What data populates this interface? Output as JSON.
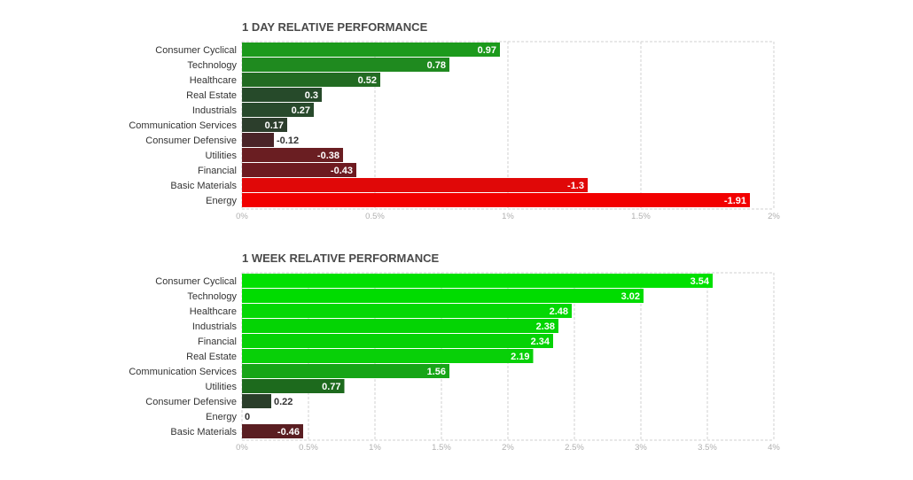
{
  "chart_data": [
    {
      "type": "bar",
      "orientation": "horizontal",
      "title": "1 DAY RELATIVE PERFORMANCE",
      "categories": [
        "Consumer Cyclical",
        "Technology",
        "Healthcare",
        "Real Estate",
        "Industrials",
        "Communication Services",
        "Consumer Defensive",
        "Utilities",
        "Financial",
        "Basic Materials",
        "Energy"
      ],
      "values": [
        0.97,
        0.78,
        0.52,
        0.3,
        0.27,
        0.17,
        -0.12,
        -0.38,
        -0.43,
        -1.3,
        -1.91
      ],
      "value_labels": [
        "0.97",
        "0.78",
        "0.52",
        "0.3",
        "0.27",
        "0.17",
        "-0.12",
        "-0.38",
        "-0.43",
        "-1.3",
        "-1.91"
      ],
      "bar_colors": [
        "#1c9a1c",
        "#1f8a1f",
        "#226b22",
        "#264a2a",
        "#284a2c",
        "#2c3e2c",
        "#4a2428",
        "#6a1e22",
        "#6e1a20",
        "#e00808",
        "#f20000"
      ],
      "xlim": [
        0,
        2
      ],
      "xticks": [
        "0%",
        "0.5%",
        "1%",
        "1.5%",
        "2%"
      ],
      "grid": true,
      "scale": "absolute value"
    },
    {
      "type": "bar",
      "orientation": "horizontal",
      "title": "1 WEEK RELATIVE PERFORMANCE",
      "categories": [
        "Consumer Cyclical",
        "Technology",
        "Healthcare",
        "Industrials",
        "Financial",
        "Real Estate",
        "Communication Services",
        "Utilities",
        "Consumer Defensive",
        "Energy",
        "Basic Materials"
      ],
      "values": [
        3.54,
        3.02,
        2.48,
        2.38,
        2.34,
        2.19,
        1.56,
        0.77,
        0.22,
        0,
        -0.46
      ],
      "value_labels": [
        "3.54",
        "3.02",
        "2.48",
        "2.38",
        "2.34",
        "2.19",
        "1.56",
        "0.77",
        "0.22",
        "0",
        "-0.46"
      ],
      "bar_colors": [
        "#00e000",
        "#00dc00",
        "#04d804",
        "#04d404",
        "#06d206",
        "#08d008",
        "#17a517",
        "#1d6a1d",
        "#2a3e2a",
        "#ffffff",
        "#5a1e22"
      ],
      "xlim": [
        0,
        4
      ],
      "xticks": [
        "0%",
        "0.5%",
        "1%",
        "1.5%",
        "2%",
        "2.5%",
        "3%",
        "3.5%",
        "4%"
      ],
      "grid": true,
      "scale": "absolute value"
    }
  ]
}
